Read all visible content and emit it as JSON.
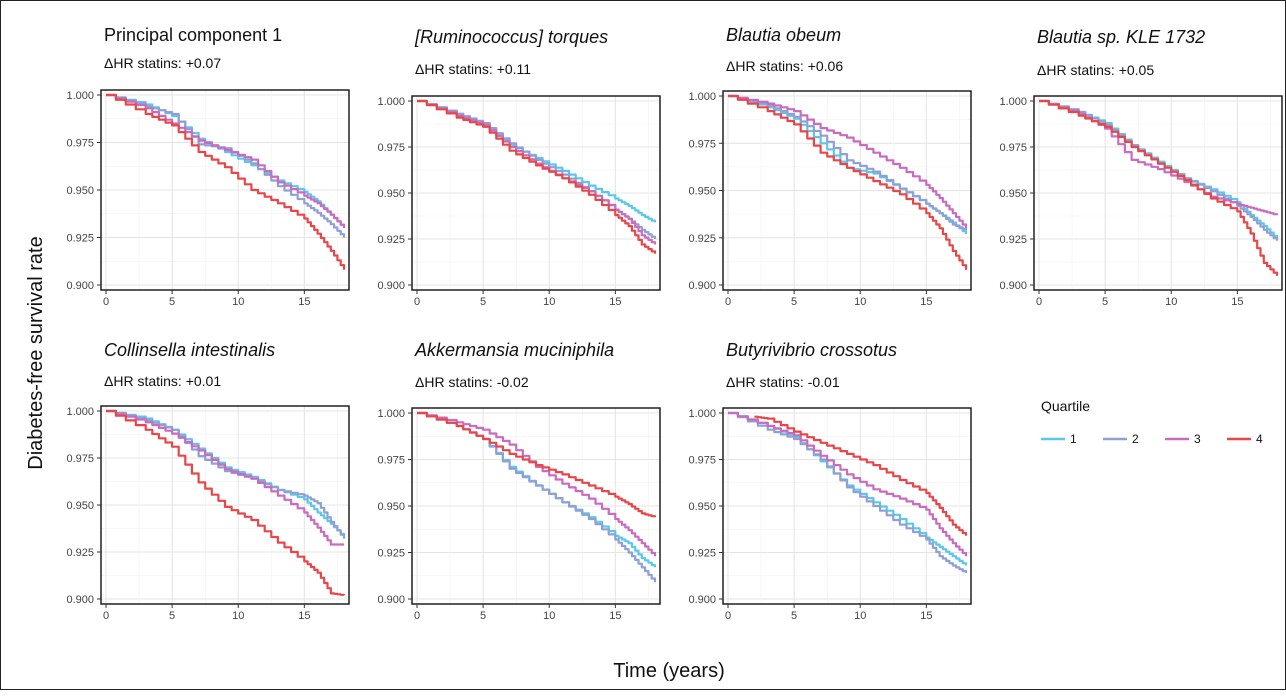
{
  "figure": {
    "ylabel": "Diabetes-free survival rate",
    "xlabel": "Time (years)",
    "legend": {
      "title": "Quartile",
      "position": "right",
      "items": [
        {
          "label": "1",
          "color": "#5bc8ea"
        },
        {
          "label": "2",
          "color": "#8ea0d4"
        },
        {
          "label": "3",
          "color": "#c96bbf"
        },
        {
          "label": "4",
          "color": "#e8474a"
        }
      ]
    }
  },
  "chart_data": [
    {
      "type": "line",
      "title": "Principal component 1",
      "title_italic": false,
      "subtitle": "ΔHR statins: +0.07",
      "xlim": [
        0,
        18
      ],
      "ylim": [
        0.9,
        1.0
      ],
      "grid": true,
      "xticks": [
        "0",
        "5",
        "10",
        "15"
      ],
      "yticks": [
        "0.900",
        "0.925",
        "0.950",
        "0.975",
        "1.000"
      ],
      "series": [
        {
          "name": "1",
          "x": [
            0,
            3,
            5,
            7,
            9,
            11,
            13,
            15,
            16,
            17,
            18
          ],
          "y": [
            1.0,
            0.995,
            0.989,
            0.977,
            0.97,
            0.963,
            0.955,
            0.949,
            0.944,
            0.937,
            0.93
          ]
        },
        {
          "name": "2",
          "x": [
            0,
            3,
            5,
            7,
            9,
            11,
            13,
            15,
            16,
            17,
            18
          ],
          "y": [
            1.0,
            0.994,
            0.99,
            0.974,
            0.972,
            0.964,
            0.952,
            0.943,
            0.938,
            0.932,
            0.925
          ]
        },
        {
          "name": "3",
          "x": [
            0,
            3,
            5,
            7,
            9,
            11,
            13,
            15,
            16,
            17,
            18
          ],
          "y": [
            1.0,
            0.993,
            0.985,
            0.976,
            0.971,
            0.966,
            0.954,
            0.947,
            0.943,
            0.937,
            0.93
          ]
        },
        {
          "name": "4",
          "x": [
            0,
            3,
            5,
            7,
            9,
            11,
            13,
            15,
            16,
            17,
            18
          ],
          "y": [
            1.0,
            0.99,
            0.984,
            0.97,
            0.962,
            0.95,
            0.943,
            0.935,
            0.927,
            0.918,
            0.908
          ]
        }
      ]
    },
    {
      "type": "line",
      "title": "[Ruminococcus] torques",
      "title_italic": true,
      "subtitle": "ΔHR statins: +0.11",
      "xlim": [
        0,
        18
      ],
      "ylim": [
        0.9,
        1.0
      ],
      "grid": true,
      "xticks": [
        "0",
        "5",
        "10",
        "15"
      ],
      "yticks": [
        "0.900",
        "0.925",
        "0.950",
        "0.975",
        "1.000"
      ],
      "series": [
        {
          "name": "1",
          "x": [
            0,
            3,
            5,
            7,
            9,
            11,
            13,
            15,
            16,
            17,
            18
          ],
          "y": [
            1.0,
            0.993,
            0.987,
            0.976,
            0.969,
            0.962,
            0.954,
            0.947,
            0.943,
            0.938,
            0.934
          ]
        },
        {
          "name": "2",
          "x": [
            0,
            3,
            5,
            7,
            9,
            11,
            13,
            15,
            16,
            17,
            18
          ],
          "y": [
            1.0,
            0.993,
            0.988,
            0.977,
            0.968,
            0.96,
            0.951,
            0.941,
            0.936,
            0.93,
            0.925
          ]
        },
        {
          "name": "3",
          "x": [
            0,
            3,
            5,
            7,
            9,
            11,
            13,
            15,
            16,
            17,
            18
          ],
          "y": [
            1.0,
            0.992,
            0.987,
            0.975,
            0.966,
            0.958,
            0.951,
            0.941,
            0.936,
            0.927,
            0.922
          ]
        },
        {
          "name": "4",
          "x": [
            0,
            3,
            5,
            7,
            9,
            11,
            13,
            15,
            16,
            17,
            18
          ],
          "y": [
            1.0,
            0.991,
            0.986,
            0.973,
            0.965,
            0.958,
            0.949,
            0.938,
            0.932,
            0.922,
            0.917
          ]
        }
      ]
    },
    {
      "type": "line",
      "title": "Blautia obeum",
      "title_italic": true,
      "subtitle": "ΔHR statins: +0.06",
      "xlim": [
        0,
        18
      ],
      "ylim": [
        0.9,
        1.0
      ],
      "grid": true,
      "xticks": [
        "0",
        "5",
        "10",
        "15"
      ],
      "yticks": [
        "0.900",
        "0.925",
        "0.950",
        "0.975",
        "1.000"
      ],
      "series": [
        {
          "name": "1",
          "x": [
            0,
            3,
            5,
            7,
            9,
            11,
            13,
            15,
            16,
            17,
            18
          ],
          "y": [
            1.0,
            0.994,
            0.988,
            0.975,
            0.962,
            0.959,
            0.951,
            0.943,
            0.938,
            0.933,
            0.927
          ]
        },
        {
          "name": "2",
          "x": [
            0,
            3,
            5,
            7,
            9,
            11,
            13,
            15,
            16,
            17,
            18
          ],
          "y": [
            1.0,
            0.995,
            0.989,
            0.979,
            0.966,
            0.96,
            0.951,
            0.943,
            0.938,
            0.932,
            0.929
          ]
        },
        {
          "name": "3",
          "x": [
            0,
            3,
            5,
            7,
            9,
            11,
            13,
            15,
            16,
            17,
            18
          ],
          "y": [
            1.0,
            0.996,
            0.992,
            0.983,
            0.978,
            0.97,
            0.962,
            0.953,
            0.946,
            0.938,
            0.93
          ]
        },
        {
          "name": "4",
          "x": [
            0,
            3,
            5,
            7,
            9,
            11,
            13,
            15,
            16,
            17,
            18
          ],
          "y": [
            1.0,
            0.992,
            0.985,
            0.97,
            0.962,
            0.955,
            0.948,
            0.938,
            0.93,
            0.918,
            0.908
          ]
        }
      ]
    },
    {
      "type": "line",
      "title": "Blautia sp. KLE 1732",
      "title_italic": true,
      "subtitle": "ΔHR statins: +0.05",
      "xlim": [
        0,
        18
      ],
      "ylim": [
        0.9,
        1.0
      ],
      "grid": true,
      "xticks": [
        "0",
        "5",
        "10",
        "15"
      ],
      "yticks": [
        "0.900",
        "0.925",
        "0.950",
        "0.975",
        "1.000"
      ],
      "series": [
        {
          "name": "1",
          "x": [
            0,
            3,
            5,
            7,
            9,
            11,
            13,
            15,
            16,
            17,
            18
          ],
          "y": [
            1.0,
            0.994,
            0.988,
            0.976,
            0.967,
            0.958,
            0.952,
            0.945,
            0.938,
            0.932,
            0.925
          ]
        },
        {
          "name": "2",
          "x": [
            0,
            3,
            5,
            7,
            9,
            11,
            13,
            15,
            16,
            17,
            18
          ],
          "y": [
            1.0,
            0.994,
            0.987,
            0.976,
            0.966,
            0.958,
            0.951,
            0.943,
            0.937,
            0.93,
            0.924
          ]
        },
        {
          "name": "3",
          "x": [
            0,
            3,
            5,
            7,
            9,
            11,
            13,
            15,
            16,
            17,
            18
          ],
          "y": [
            1.0,
            0.993,
            0.985,
            0.968,
            0.963,
            0.956,
            0.948,
            0.944,
            0.942,
            0.94,
            0.938
          ]
        },
        {
          "name": "4",
          "x": [
            0,
            3,
            5,
            7,
            9,
            11,
            13,
            15,
            16,
            17,
            18
          ],
          "y": [
            1.0,
            0.992,
            0.986,
            0.975,
            0.966,
            0.957,
            0.947,
            0.94,
            0.928,
            0.912,
            0.905
          ]
        }
      ]
    },
    {
      "type": "line",
      "title": "Collinsella intestinalis",
      "title_italic": true,
      "subtitle": "ΔHR statins: +0.01",
      "xlim": [
        0,
        18
      ],
      "ylim": [
        0.9,
        1.0
      ],
      "grid": true,
      "xticks": [
        "0",
        "5",
        "10",
        "15"
      ],
      "yticks": [
        "0.900",
        "0.925",
        "0.950",
        "0.975",
        "1.000"
      ],
      "series": [
        {
          "name": "1",
          "x": [
            0,
            3,
            5,
            7,
            9,
            11,
            13,
            15,
            16,
            17,
            18
          ],
          "y": [
            1.0,
            0.996,
            0.99,
            0.98,
            0.97,
            0.965,
            0.958,
            0.953,
            0.946,
            0.94,
            0.933
          ]
        },
        {
          "name": "2",
          "x": [
            0,
            3,
            5,
            7,
            9,
            11,
            13,
            15,
            16,
            17,
            18
          ],
          "y": [
            1.0,
            0.995,
            0.99,
            0.976,
            0.968,
            0.964,
            0.958,
            0.955,
            0.951,
            0.941,
            0.932
          ]
        },
        {
          "name": "3",
          "x": [
            0,
            3,
            5,
            7,
            9,
            11,
            13,
            15,
            16,
            17,
            18
          ],
          "y": [
            1.0,
            0.994,
            0.988,
            0.979,
            0.969,
            0.964,
            0.955,
            0.946,
            0.938,
            0.929,
            0.929
          ]
        },
        {
          "name": "4",
          "x": [
            0,
            3,
            5,
            7,
            9,
            11,
            13,
            15,
            16,
            17,
            18
          ],
          "y": [
            1.0,
            0.99,
            0.981,
            0.962,
            0.949,
            0.942,
            0.93,
            0.92,
            0.914,
            0.903,
            0.902
          ]
        }
      ]
    },
    {
      "type": "line",
      "title": "Akkermansia muciniphila",
      "title_italic": true,
      "subtitle": "ΔHR statins: -0.02",
      "xlim": [
        0,
        18
      ],
      "ylim": [
        0.9,
        1.0
      ],
      "grid": true,
      "xticks": [
        "0",
        "5",
        "10",
        "15"
      ],
      "yticks": [
        "0.900",
        "0.925",
        "0.950",
        "0.975",
        "1.000"
      ],
      "series": [
        {
          "name": "1",
          "x": [
            0,
            3,
            5,
            7,
            9,
            11,
            13,
            15,
            16,
            17,
            18
          ],
          "y": [
            1.0,
            0.993,
            0.986,
            0.971,
            0.961,
            0.952,
            0.944,
            0.934,
            0.93,
            0.922,
            0.917
          ]
        },
        {
          "name": "2",
          "x": [
            0,
            3,
            5,
            7,
            9,
            11,
            13,
            15,
            16,
            17,
            18
          ],
          "y": [
            1.0,
            0.993,
            0.986,
            0.97,
            0.961,
            0.952,
            0.943,
            0.932,
            0.925,
            0.917,
            0.909
          ]
        },
        {
          "name": "3",
          "x": [
            0,
            3,
            5,
            7,
            9,
            11,
            13,
            15,
            16,
            17,
            18
          ],
          "y": [
            1.0,
            0.995,
            0.991,
            0.983,
            0.971,
            0.962,
            0.954,
            0.943,
            0.937,
            0.93,
            0.923
          ]
        },
        {
          "name": "4",
          "x": [
            0,
            3,
            5,
            7,
            9,
            11,
            13,
            15,
            16,
            17,
            18
          ],
          "y": [
            1.0,
            0.993,
            0.986,
            0.978,
            0.972,
            0.967,
            0.961,
            0.955,
            0.951,
            0.946,
            0.944
          ]
        }
      ]
    },
    {
      "type": "line",
      "title": "Butyrivibrio crossotus",
      "title_italic": true,
      "subtitle": "ΔHR statins: -0.01",
      "xlim": [
        0,
        18
      ],
      "ylim": [
        0.9,
        1.0
      ],
      "grid": true,
      "xticks": [
        "0",
        "5",
        "10",
        "15"
      ],
      "yticks": [
        "0.900",
        "0.925",
        "0.950",
        "0.975",
        "1.000"
      ],
      "series": [
        {
          "name": "1",
          "x": [
            0,
            3,
            5,
            7,
            9,
            11,
            13,
            15,
            16,
            17,
            18
          ],
          "y": [
            1.0,
            0.993,
            0.987,
            0.974,
            0.961,
            0.952,
            0.943,
            0.933,
            0.928,
            0.923,
            0.918
          ]
        },
        {
          "name": "2",
          "x": [
            0,
            3,
            5,
            7,
            9,
            11,
            13,
            15,
            16,
            17,
            18
          ],
          "y": [
            1.0,
            0.991,
            0.986,
            0.975,
            0.96,
            0.95,
            0.94,
            0.932,
            0.923,
            0.918,
            0.914
          ]
        },
        {
          "name": "3",
          "x": [
            0,
            3,
            5,
            7,
            9,
            11,
            13,
            15,
            16,
            17,
            18
          ],
          "y": [
            1.0,
            0.993,
            0.988,
            0.977,
            0.967,
            0.959,
            0.954,
            0.948,
            0.938,
            0.93,
            0.923
          ]
        },
        {
          "name": "4",
          "x": [
            2,
            3,
            5,
            7,
            9,
            11,
            13,
            15,
            16,
            17,
            18
          ],
          "y": [
            0.998,
            0.997,
            0.99,
            0.984,
            0.978,
            0.972,
            0.964,
            0.957,
            0.949,
            0.94,
            0.934
          ]
        }
      ]
    }
  ]
}
